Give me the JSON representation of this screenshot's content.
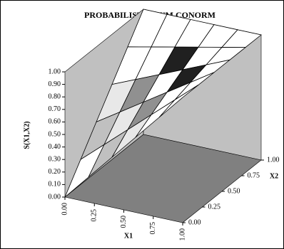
{
  "chart_data": {
    "type": "surface",
    "title": "PROBABILISTIC SUM CONORM",
    "z_label": "S(X1,X2)",
    "x1_label": "X1",
    "x2_label": "X2",
    "x1": [
      0,
      0.2,
      0.4,
      0.6,
      0.8,
      1
    ],
    "x2": [
      0,
      0.2,
      0.4,
      0.6,
      0.8,
      1
    ],
    "z_values": [
      [
        0,
        0.2,
        0.4,
        0.6,
        0.8,
        1
      ],
      [
        0.2,
        0.36,
        0.52,
        0.68,
        0.84,
        1
      ],
      [
        0.4,
        0.52,
        0.64,
        0.76,
        0.88,
        1
      ],
      [
        0.6,
        0.68,
        0.76,
        0.84,
        0.92,
        1
      ],
      [
        0.8,
        0.84,
        0.88,
        0.92,
        0.96,
        1
      ],
      [
        1,
        1,
        1,
        1,
        1,
        1
      ]
    ],
    "x1lim": [
      0,
      1
    ],
    "x2lim": [
      0,
      1
    ],
    "zlim": [
      0,
      1
    ],
    "x1ticks": [
      {
        "value": 0,
        "label": "0.00"
      },
      {
        "value": 0.25,
        "label": "0.25"
      },
      {
        "value": 0.5,
        "label": "0.50"
      },
      {
        "value": 0.75,
        "label": "0.75"
      },
      {
        "value": 1,
        "label": "1.00"
      }
    ],
    "x2ticks": [
      {
        "value": 0,
        "label": "0.00"
      },
      {
        "value": 0.25,
        "label": "0.25"
      },
      {
        "value": 0.5,
        "label": "0.50"
      },
      {
        "value": 0.75,
        "label": "0.75"
      },
      {
        "value": 1,
        "label": "1.00"
      }
    ],
    "zticks": [
      {
        "value": 0,
        "label": "0.00"
      },
      {
        "value": 0.1,
        "label": "0.10"
      },
      {
        "value": 0.2,
        "label": "0.20"
      },
      {
        "value": 0.3,
        "label": "0.30"
      },
      {
        "value": 0.4,
        "label": "0.40"
      },
      {
        "value": 0.5,
        "label": "0.50"
      },
      {
        "value": 0.6,
        "label": "0.60"
      },
      {
        "value": 0.7,
        "label": "0.70"
      },
      {
        "value": 0.8,
        "label": "0.80"
      },
      {
        "value": 0.9,
        "label": "0.90"
      },
      {
        "value": 1,
        "label": "1.00"
      }
    ],
    "band_colors": [
      "#404040",
      "#ffffff",
      "#808080",
      "#c0c0c0",
      "#303030",
      "#e8e8e8",
      "#909090",
      "#ffffff",
      "#202020",
      "#ffffff"
    ],
    "wall_color": "#c0c0c0",
    "floor_color": "#808080"
  }
}
